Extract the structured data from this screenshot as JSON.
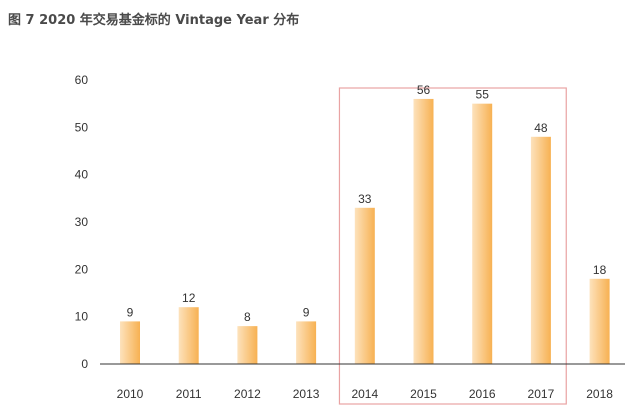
{
  "chart_data": {
    "type": "bar",
    "title": "图 7 2020 年交易基金标的 Vintage Year 分布",
    "xlabel": "",
    "ylabel": "",
    "categories": [
      "2010",
      "2011",
      "2012",
      "2013",
      "2014",
      "2015",
      "2016",
      "2017",
      "2018"
    ],
    "values": [
      9,
      12,
      8,
      9,
      33,
      56,
      55,
      48,
      18
    ],
    "ylim": [
      0,
      60
    ],
    "yticks": [
      0,
      10,
      20,
      30,
      40,
      50,
      60
    ],
    "grid": false,
    "legend": "none",
    "highlight": {
      "categories": [
        "2014",
        "2015",
        "2016",
        "2017"
      ],
      "color": "#e9a3a3"
    },
    "bar_color": "#f7b55a"
  }
}
